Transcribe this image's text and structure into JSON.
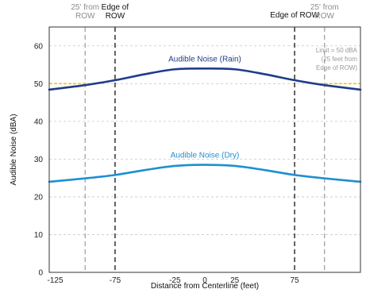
{
  "chart_data": {
    "type": "line",
    "xlabel": "Distance from Centerline (feet)",
    "ylabel": "Audible Noise (dBA)",
    "xlim": [
      -130,
      130
    ],
    "ylim": [
      0,
      65
    ],
    "x_ticks": [
      "-125",
      "-75",
      "-25",
      "0",
      "25",
      "75"
    ],
    "x_tick_values": [
      -125,
      -75,
      -25,
      0,
      25,
      75
    ],
    "y_ticks": [
      "0",
      "10",
      "20",
      "30",
      "40",
      "50",
      "60"
    ],
    "y_tick_values": [
      0,
      10,
      20,
      30,
      40,
      50,
      60
    ],
    "grid": true,
    "series": [
      {
        "name": "Audible Noise (Rain)",
        "color": "#1f3c8c",
        "x": [
          -130,
          -100,
          -75,
          -50,
          -25,
          0,
          25,
          50,
          75,
          100,
          130
        ],
        "y": [
          48.4,
          49.6,
          50.9,
          52.5,
          53.8,
          54.0,
          53.8,
          52.5,
          50.9,
          49.6,
          48.4
        ]
      },
      {
        "name": "Audible Noise (Dry)",
        "color": "#1e8fd2",
        "x": [
          -130,
          -100,
          -75,
          -50,
          -25,
          0,
          25,
          50,
          75,
          100,
          130
        ],
        "y": [
          24.0,
          24.9,
          25.8,
          27.1,
          28.2,
          28.5,
          28.2,
          27.1,
          25.8,
          24.9,
          24.0
        ]
      }
    ],
    "limit_line": {
      "value": 50,
      "color": "#f2c515",
      "x_ranges": [
        [
          -130,
          -100
        ],
        [
          100,
          130
        ]
      ]
    },
    "vlines": [
      {
        "x": -100,
        "label": "25' from\nROW",
        "style": "gray-dashed",
        "label_color": "#8c8c8c"
      },
      {
        "x": -75,
        "label": "Edge of\nROW",
        "style": "black-dashed",
        "label_color": "#111111"
      },
      {
        "x": 75,
        "label": "Edge of ROW",
        "style": "black-dashed",
        "label_color": "#111111"
      },
      {
        "x": 100,
        "label": "25' from\nROW",
        "style": "gray-dashed",
        "label_color": "#8c8c8c"
      }
    ],
    "annotations": [
      {
        "text": "Limit = 50 dBA\n(25 feet from\nEdge of ROW)"
      }
    ]
  }
}
